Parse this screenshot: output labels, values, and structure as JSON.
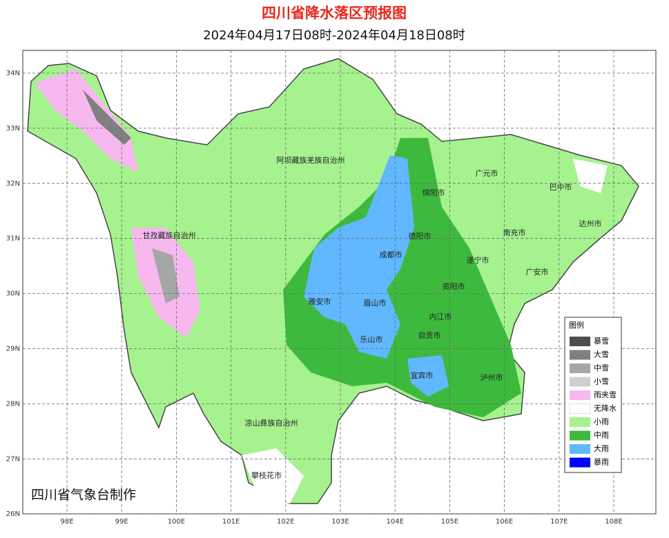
{
  "header": {
    "title": "四川省降水落区预报图",
    "subtitle": "2024年04月17日08时-2024年04月18日08时"
  },
  "map": {
    "lon_ticks": [
      "98E",
      "99E",
      "100E",
      "101E",
      "102E",
      "103E",
      "104E",
      "105E",
      "106E",
      "107E",
      "108E"
    ],
    "lat_ticks": [
      "34N",
      "33N",
      "32N",
      "31N",
      "30N",
      "29N",
      "28N",
      "27N",
      "26N"
    ],
    "cities": [
      "阿坝藏族羌族自治州",
      "广元市",
      "巴中市",
      "绵阳市",
      "达州市",
      "甘孜藏族自治州",
      "南充市",
      "德阳市",
      "成都市",
      "遂宁市",
      "广安市",
      "资阳市",
      "雅安市",
      "眉山市",
      "内江市",
      "乐山市",
      "自贡市",
      "宜宾市",
      "泸州市",
      "凉山彝族自治州",
      "攀枝花市"
    ],
    "credit": "四川省气象台制作"
  },
  "legend": {
    "title": "图例",
    "items": [
      {
        "label": "暴雪",
        "color": "#4d4d4d"
      },
      {
        "label": "大雪",
        "color": "#808080"
      },
      {
        "label": "中雪",
        "color": "#a6a6a6"
      },
      {
        "label": "小雪",
        "color": "#cfcfcf"
      },
      {
        "label": "雨夹雪",
        "color": "#f7b8ef"
      },
      {
        "label": "无降水",
        "color": "#ffffff"
      },
      {
        "label": "小雨",
        "color": "#a6f28f"
      },
      {
        "label": "中雨",
        "color": "#3dba3d"
      },
      {
        "label": "大雨",
        "color": "#61b8ff"
      },
      {
        "label": "暴雨",
        "color": "#0000ff"
      }
    ]
  }
}
